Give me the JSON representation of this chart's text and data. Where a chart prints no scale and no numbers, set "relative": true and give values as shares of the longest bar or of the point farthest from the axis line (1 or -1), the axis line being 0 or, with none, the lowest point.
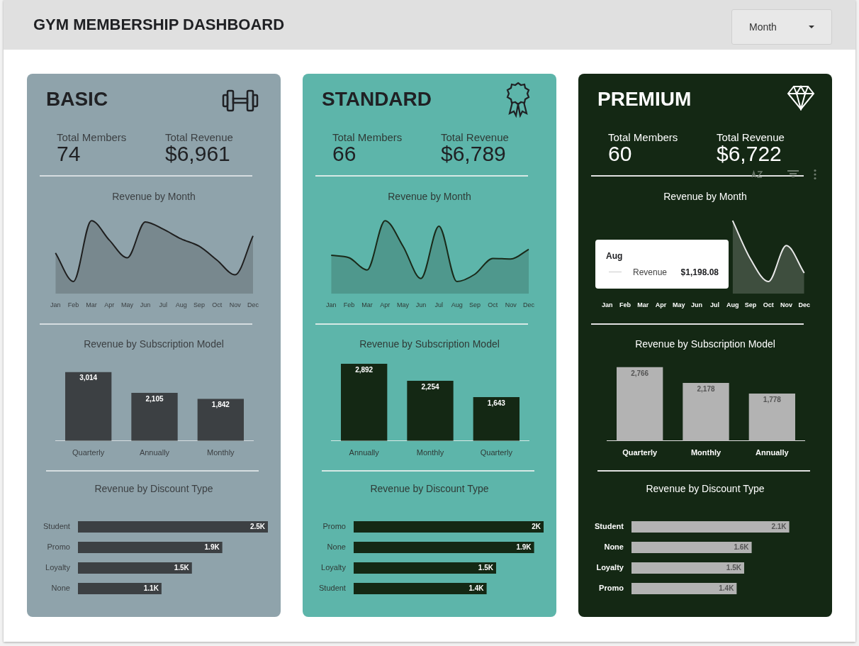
{
  "chart_data": [
    {
      "type": "other",
      "title": "GYM MEMBERSHIP DASHBOARD",
      "annotations": [
        "Month"
      ]
    },
    {
      "type": "other",
      "title": "BASIC",
      "annotations": [
        "Total Members",
        "74",
        "Total Revenue",
        "$6,961"
      ]
    },
    {
      "type": "area",
      "title": "Revenue by Month",
      "categories": [
        "Jan",
        "Feb",
        "Mar",
        "Apr",
        "May",
        "Jun",
        "Jul",
        "Aug",
        "Sep",
        "Oct",
        "Nov",
        "Dec"
      ],
      "relative": true,
      "color": "#1f1f1f",
      "values": [
        0.47,
        0,
        1,
        0.68,
        0.39,
        0.98,
        0.86,
        0.7,
        0.58,
        0.35,
        0.11,
        0.75
      ]
    },
    {
      "type": "bar",
      "title": "Revenue by Subscription Model",
      "categories": [
        "Quarterly",
        "Annually",
        "Monthly"
      ],
      "color": "#3c4043",
      "values": [
        3014,
        2105,
        1842
      ],
      "value_labels": [
        "3,014",
        "2,105",
        "1,842"
      ]
    },
    {
      "type": "bar",
      "orientation": "horizontal",
      "title": "Revenue by Discount Type",
      "categories": [
        "Student",
        "Promo",
        "Loyalty",
        "None"
      ],
      "color": "#3c4043",
      "values": [
        2500,
        1900,
        1500,
        1100
      ],
      "value_labels": [
        "2.5K",
        "1.9K",
        "1.5K",
        "1.1K"
      ]
    },
    {
      "type": "other",
      "title": "STANDARD",
      "annotations": [
        "Total Members",
        "66",
        "Total Revenue",
        "$6,789"
      ]
    },
    {
      "type": "area",
      "title": "Revenue by Month",
      "categories": [
        "Jan",
        "Feb",
        "Mar",
        "Apr",
        "May",
        "Jun",
        "Jul",
        "Aug",
        "Sep",
        "Oct",
        "Nov",
        "Dec"
      ],
      "relative": true,
      "color": "#1a2a1a",
      "values": [
        0.43,
        0.39,
        0.19,
        1,
        0.58,
        0.05,
        0.91,
        0,
        0.12,
        0.38,
        0.37,
        0.53
      ]
    },
    {
      "type": "bar",
      "title": "Revenue by Subscription Model",
      "categories": [
        "Annually",
        "Monthly",
        "Quarterly"
      ],
      "color": "#142814",
      "values": [
        2892,
        2254,
        1643
      ],
      "value_labels": [
        "2,892",
        "2,254",
        "1,643"
      ]
    },
    {
      "type": "bar",
      "orientation": "horizontal",
      "title": "Revenue by Discount Type",
      "categories": [
        "Promo",
        "None",
        "Loyalty",
        "Student"
      ],
      "color": "#142814",
      "values": [
        2000,
        1900,
        1500,
        1400
      ],
      "value_labels": [
        "2K",
        "1.9K",
        "1.5K",
        "1.4K"
      ]
    },
    {
      "type": "other",
      "title": "PREMIUM",
      "annotations": [
        "Total Members",
        "60",
        "Total Revenue",
        "$6,722"
      ]
    },
    {
      "type": "area",
      "title": "Revenue by Month",
      "categories": [
        "Jan",
        "Feb",
        "Mar",
        "Apr",
        "May",
        "Jun",
        "Jul",
        "Aug",
        "Sep",
        "Oct",
        "Nov",
        "Dec"
      ],
      "relative": true,
      "color": "#e8e8e8",
      "values": [
        null,
        null,
        null,
        null,
        null,
        null,
        null,
        1,
        0.37,
        0,
        0.59,
        0.14
      ],
      "annotations": [
        "Aug",
        "Revenue",
        "$1,198.08"
      ]
    },
    {
      "type": "bar",
      "title": "Revenue by Subscription Model",
      "categories": [
        "Quarterly",
        "Monthly",
        "Annually"
      ],
      "color": "#b3b3b3",
      "values": [
        2766,
        2178,
        1778
      ],
      "value_labels": [
        "2,766",
        "2,178",
        "1,778"
      ]
    },
    {
      "type": "bar",
      "orientation": "horizontal",
      "title": "Revenue by Discount Type",
      "categories": [
        "Student",
        "None",
        "Loyalty",
        "Promo"
      ],
      "color": "#b3b3b3",
      "values": [
        2100,
        1600,
        1500,
        1400
      ],
      "value_labels": [
        "2.1K",
        "1.6K",
        "1.5K",
        "1.4K"
      ]
    }
  ]
}
